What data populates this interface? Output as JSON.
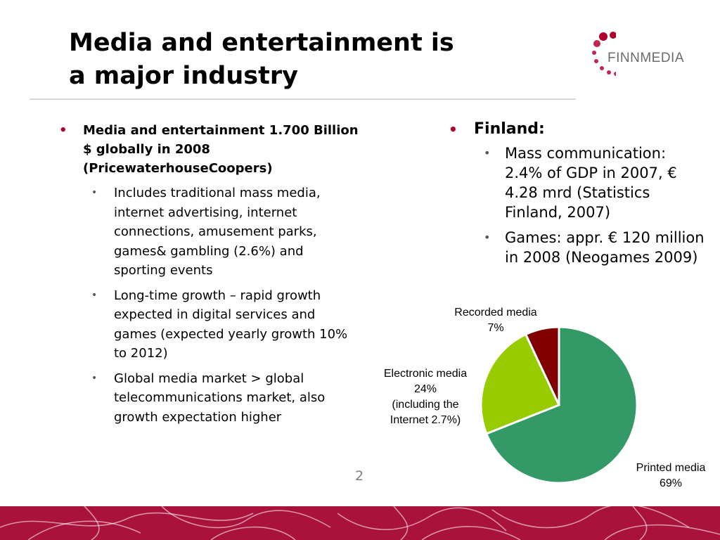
{
  "title": {
    "line1": "Media and entertainment is",
    "line2": "a major industry"
  },
  "logo": {
    "text": "FINNMEDIA",
    "dot_color": "#b0002e"
  },
  "left": {
    "main_bullet": "Media and entertainment 1.700 Billion $ globally in 2008 (PricewaterhouseCoopers)",
    "sub_bullets": [
      "Includes traditional mass media, internet advertising, internet connections, amusement parks, games& gambling (2.6%) and sporting events",
      "Long-time growth – rapid growth expected in digital services and games (expected yearly growth 10% to 2012)",
      "Global media market > global telecommunications market, also growth expectation higher"
    ]
  },
  "right": {
    "main_bullet": "Finland:",
    "sub_bullets": [
      "Mass communication: 2.4% of GDP in 2007, € 4.28 mrd (Statistics Finland, 2007)",
      "Games: appr. € 120 million in 2008 (Neogames 2009)"
    ]
  },
  "chart_data": {
    "type": "pie",
    "slices": [
      {
        "label_lines": [
          "Printed media",
          "69%"
        ],
        "value": 69,
        "color": "#339966"
      },
      {
        "label_lines": [
          "Electronic media",
          "24%",
          "(including the",
          "Internet 2.7%)"
        ],
        "value": 24,
        "color": "#99cc00"
      },
      {
        "label_lines": [
          "Recorded media",
          "7%"
        ],
        "value": 7,
        "color": "#800000"
      }
    ]
  },
  "page_number": "2",
  "colors": {
    "accent_bullet": "#b0002e",
    "footer": "#a8123b"
  }
}
